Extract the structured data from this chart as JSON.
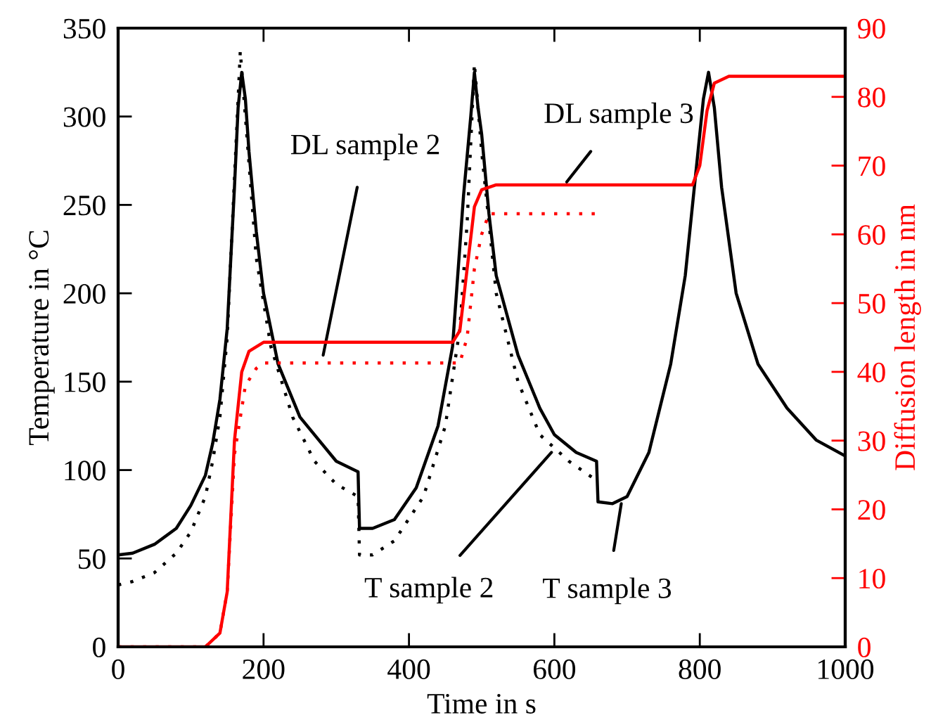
{
  "chart_data": {
    "type": "line",
    "xlabel": "Time in s",
    "ylabel": "Temperature in °C",
    "y2label": "Diffusion length in nm",
    "xlim": [
      0,
      1000
    ],
    "xticks": [
      0,
      200,
      400,
      600,
      800,
      1000
    ],
    "ylim": [
      0,
      350
    ],
    "yticks": [
      0,
      50,
      100,
      150,
      200,
      250,
      300,
      350
    ],
    "y2lim": [
      0,
      90
    ],
    "y2ticks": [
      0,
      10,
      20,
      30,
      40,
      50,
      60,
      70,
      80,
      90
    ],
    "grid": false,
    "legend": false,
    "series": [
      {
        "color": "#000000",
        "line_style": "solid",
        "x": [
          0,
          20,
          50,
          80,
          100,
          120,
          130,
          140,
          150,
          160,
          165,
          170,
          175,
          180,
          190,
          200,
          220,
          250,
          280,
          300,
          330,
          332,
          350,
          380,
          410,
          440,
          460,
          475,
          485,
          490,
          495,
          500,
          510,
          520,
          550,
          580,
          600,
          630,
          658,
          660,
          680,
          700,
          730,
          760,
          780,
          795,
          805,
          812,
          820,
          830,
          850,
          880,
          920,
          960,
          1000
        ],
        "values": [
          52,
          53,
          58,
          67,
          80,
          97,
          115,
          140,
          180,
          260,
          305,
          325,
          310,
          280,
          235,
          200,
          160,
          130,
          115,
          105,
          99,
          67,
          67,
          72,
          90,
          125,
          170,
          255,
          300,
          325,
          305,
          290,
          245,
          210,
          165,
          135,
          120,
          110,
          105,
          82,
          81,
          85,
          110,
          160,
          210,
          270,
          310,
          325,
          305,
          260,
          200,
          160,
          135,
          117,
          108
        ]
      },
      {
        "color": "#000000",
        "line_style": "dotted",
        "x": [
          0,
          20,
          50,
          80,
          100,
          120,
          130,
          140,
          150,
          160,
          168,
          175,
          190,
          210,
          240,
          270,
          300,
          330,
          332,
          350,
          380,
          420,
          450,
          470,
          480,
          490,
          500,
          520,
          550,
          580,
          620,
          655
        ],
        "values": [
          35,
          37,
          42,
          53,
          65,
          85,
          105,
          130,
          175,
          265,
          337,
          300,
          220,
          170,
          130,
          105,
          92,
          85,
          52,
          52,
          60,
          85,
          125,
          180,
          240,
          330,
          280,
          200,
          150,
          120,
          105,
          95
        ]
      },
      {
        "color": "#ff0000",
        "line_style": "solid",
        "axis": "y2",
        "x": [
          0,
          120,
          140,
          150,
          160,
          170,
          180,
          200,
          460,
          470,
          480,
          490,
          500,
          520,
          790,
          800,
          810,
          820,
          840,
          1000
        ],
        "values": [
          0,
          0,
          2,
          8,
          30,
          40,
          43,
          44.3,
          44.3,
          46,
          55,
          64,
          66.5,
          67.2,
          67.2,
          70,
          78,
          82,
          83,
          83
        ]
      },
      {
        "color": "#ff0000",
        "line_style": "dotted",
        "axis": "y2",
        "x": [
          0,
          120,
          140,
          150,
          160,
          175,
          190,
          200,
          470,
          480,
          490,
          500,
          510,
          520,
          660
        ],
        "values": [
          0,
          0,
          2,
          8,
          28,
          38,
          40.5,
          41.3,
          41.3,
          45,
          55,
          60,
          63,
          63,
          63
        ]
      }
    ],
    "annotations": [
      {
        "text": "DL sample 2",
        "x": 282,
        "y": 165
      },
      {
        "text": "DL sample 3",
        "x": 617,
        "y": 263
      },
      {
        "text": "T sample 2",
        "x": 596,
        "y": 110
      },
      {
        "text": "T sample 3",
        "x": 692,
        "y": 81
      }
    ]
  }
}
